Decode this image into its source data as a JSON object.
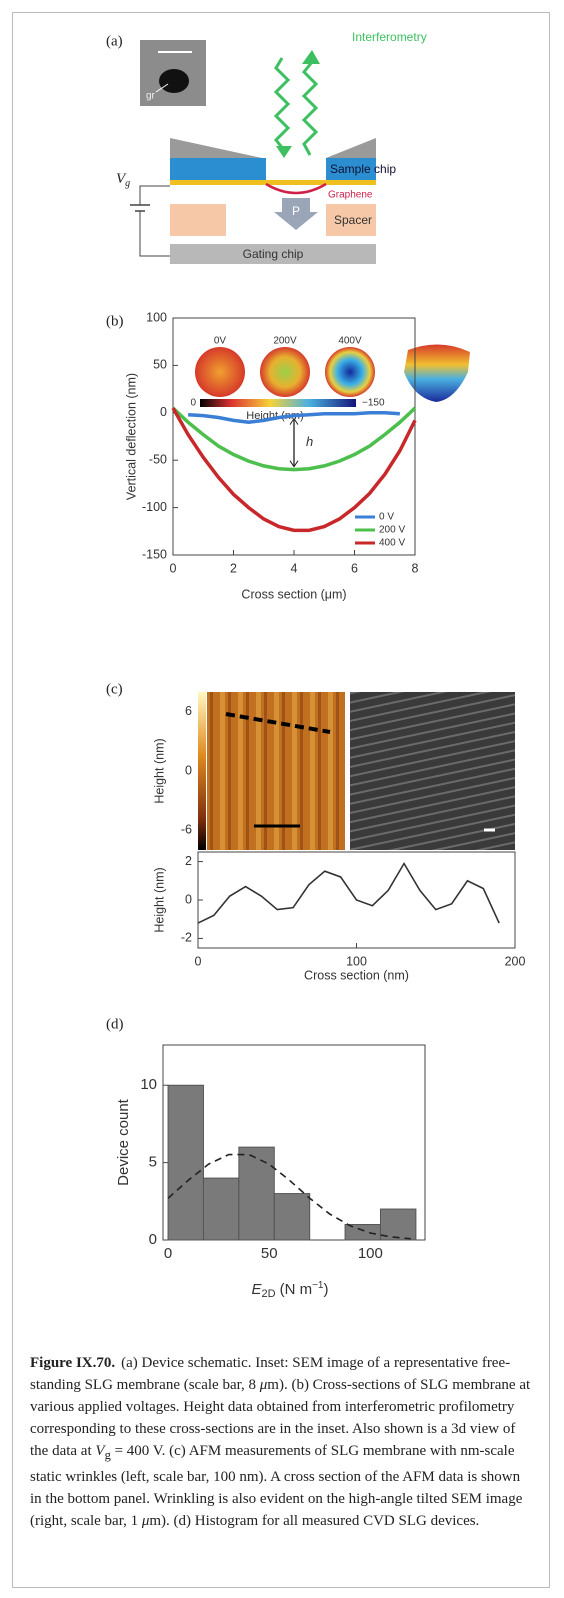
{
  "schematic": {
    "panel_label": "(a)",
    "inset_label": "gr",
    "interferometry": "Interferometry",
    "sample_chip": "Sample chip",
    "graphene": "Graphene",
    "spacer": "Spacer",
    "gating_chip": "Gating chip",
    "pressure": "P",
    "voltage": "V",
    "voltage_sub": "g"
  },
  "chart_data": [
    {
      "type": "line",
      "panel_label": "(b)",
      "x_label": "Cross section (μm)",
      "y_label": "Vertical deflection (nm)",
      "x": [
        0,
        0.5,
        1,
        1.5,
        2,
        2.5,
        3,
        3.5,
        4,
        4.5,
        5,
        5.5,
        6,
        6.5,
        7,
        7.5,
        8
      ],
      "series": [
        {
          "name": "0 V",
          "color": "#3a7fd5",
          "values": [
            null,
            -2,
            -3,
            -5,
            -8,
            -10,
            -8,
            -5,
            -3,
            -2,
            -1,
            -1,
            -1,
            0,
            0,
            -1,
            null
          ]
        },
        {
          "name": "200 V",
          "color": "#4cbf4c",
          "values": [
            5,
            -10,
            -23,
            -35,
            -44,
            -51,
            -56,
            -59,
            -60,
            -59,
            -56,
            -51,
            -44,
            -35,
            -23,
            -10,
            5
          ]
        },
        {
          "name": "400 V",
          "color": "#c8282a",
          "values": [
            5,
            -23,
            -47,
            -68,
            -86,
            -100,
            -112,
            -120,
            -124,
            -124,
            -120,
            -112,
            -100,
            -85,
            -65,
            -40,
            -8
          ]
        }
      ],
      "xlim": [
        0,
        8
      ],
      "xticks": [
        0,
        2,
        4,
        6,
        8
      ],
      "ylim": [
        -150,
        100
      ],
      "yticks": [
        -150,
        -100,
        -50,
        0,
        50,
        100
      ],
      "legend": "lower right",
      "inset_labels": [
        "0V",
        "200V",
        "400V"
      ],
      "colorbar_label": "Height (nm)",
      "colorbar_ticks": [
        0,
        {
          "value": -150,
          "label": "−150"
        }
      ],
      "annotation": "h"
    },
    {
      "type": "line",
      "panel_label": "(c)",
      "x_label": "Cross section (nm)",
      "y_label": "Height (nm)",
      "x": [
        0,
        10,
        20,
        30,
        40,
        50,
        60,
        70,
        80,
        90,
        100,
        110,
        120,
        130,
        140,
        150,
        160,
        170,
        180,
        190
      ],
      "series": [
        {
          "color": "#333333",
          "values": [
            -1.2,
            -0.8,
            0.2,
            0.7,
            0.2,
            -0.5,
            -0.4,
            0.8,
            1.5,
            1.2,
            0,
            -0.3,
            0.5,
            1.9,
            0.5,
            -0.5,
            -0.2,
            1.0,
            0.6,
            -1.2
          ]
        }
      ],
      "xlim": [
        0,
        200
      ],
      "xticks": [
        0,
        100,
        200
      ],
      "ylim": [
        -2.5,
        2.5
      ],
      "yticks": [
        -2,
        0,
        2
      ],
      "image_y_label": "Height (nm)",
      "colorbar_lim": [
        -8,
        8
      ],
      "colorbar_ticks": [
        6,
        0,
        -6
      ]
    },
    {
      "type": "histogram",
      "panel_label": "(d)",
      "y_label": "Device count",
      "x_label": {
        "symbol": "E",
        "subscript": "2D",
        "unit": "(N m",
        "superscript": "−1",
        "close": ")"
      },
      "bins": [
        0,
        17.5,
        35,
        52.5,
        70,
        87.5,
        105,
        122.5
      ],
      "values": [
        10,
        4,
        6,
        3,
        0,
        1,
        2
      ],
      "color": "#7a7a7a",
      "xlim": [
        -2.5,
        127
      ],
      "xticks": [
        0,
        50,
        100
      ],
      "ylim": [
        0,
        12.6
      ],
      "yticks": [
        0,
        5,
        10
      ],
      "fit": {
        "style": "dashed",
        "x": [
          0,
          10,
          20,
          30,
          40,
          50,
          60,
          70,
          80,
          90,
          100,
          110,
          120
        ],
        "y": [
          2.7,
          3.86,
          4.9,
          5.52,
          5.52,
          4.9,
          3.86,
          2.7,
          1.67,
          0.92,
          0.45,
          0.2,
          0.08
        ]
      }
    }
  ],
  "caption": {
    "label": "Figure IX.70.",
    "text": [
      "(a) Device schematic. Inset: SEM image of a representative free-standing SLG membrane (scale bar, 8 ",
      "μ",
      "m). (b) Cross-sections of SLG membrane at various applied voltages. Height data obtained from interferometric profilometry corresponding to these cross-sections are in the inset. Also shown is a 3d view of the data at ",
      "V",
      "g",
      " = 400 V. (c) AFM measurements of SLG membrane with nm-scale static wrinkles (left, scale bar, 100 nm). A cross section of the AFM data is shown in the bottom panel. Wrinkling is also evident on the high-angle tilted SEM image (right, scale bar, 1 ",
      "μ",
      "m). (d) Histogram for all measured CVD SLG devices."
    ]
  }
}
